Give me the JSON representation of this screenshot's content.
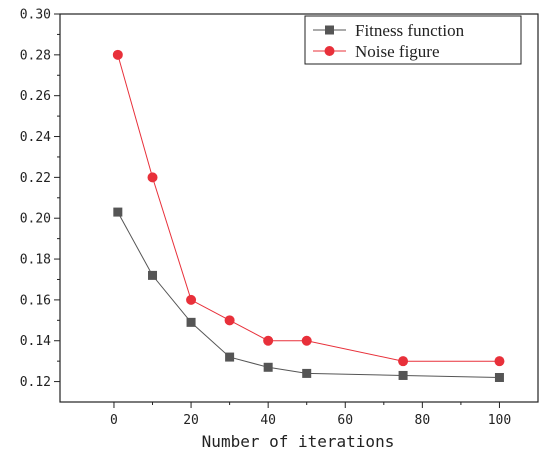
{
  "chart_data": {
    "type": "line",
    "title": "",
    "xlabel": "Number of iterations",
    "ylabel": "",
    "xlim": [
      -14,
      110
    ],
    "ylim": [
      0.11,
      0.3
    ],
    "xticks": [
      0,
      20,
      40,
      60,
      80,
      100
    ],
    "xtick_labels": [
      "0",
      "20",
      "40",
      "60",
      "80",
      "100"
    ],
    "yticks": [
      0.12,
      0.14,
      0.16,
      0.18,
      0.2,
      0.22,
      0.24,
      0.26,
      0.28,
      0.3
    ],
    "ytick_labels": [
      "0.12",
      "0.14",
      "0.16",
      "0.18",
      "0.20",
      "0.22",
      "0.24",
      "0.26",
      "0.28",
      "0.30"
    ],
    "grid": false,
    "legend_position": "top-right",
    "x": [
      1,
      10,
      20,
      30,
      40,
      50,
      75,
      100
    ],
    "series": [
      {
        "name": "Fitness function",
        "color": "#555555",
        "marker": "square",
        "values": [
          0.203,
          0.172,
          0.149,
          0.132,
          0.127,
          0.124,
          0.123,
          0.122
        ]
      },
      {
        "name": "Noise figure",
        "color": "#e8303a",
        "marker": "circle",
        "values": [
          0.28,
          0.22,
          0.16,
          0.15,
          0.14,
          0.14,
          0.13,
          0.13
        ]
      }
    ]
  }
}
